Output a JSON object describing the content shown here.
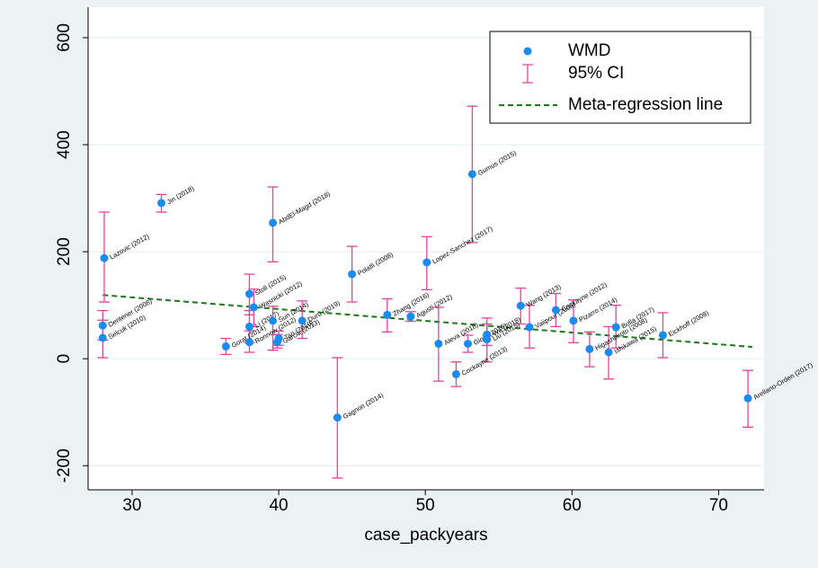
{
  "chart_data": {
    "type": "scatter",
    "x_label": "case_packyears",
    "xlim": [
      27,
      73.1
    ],
    "xticks": [
      30,
      40,
      50,
      60,
      70
    ],
    "ylim": [
      -245,
      657
    ],
    "yticks": [
      -200,
      0,
      200,
      400,
      600
    ],
    "grid": true,
    "legend": "top-right",
    "series": [
      {
        "name": "WMD",
        "color": "#1a8cf0",
        "x": [
          28.1,
          28.0,
          28.0,
          32,
          36.4,
          38,
          38.3,
          38,
          38,
          39.6,
          39.6,
          39.9,
          40,
          41.6,
          44,
          45,
          47.4,
          49,
          50.1,
          50.9,
          53.2,
          52.1,
          52.9,
          54.2,
          54.2,
          56.5,
          57.1,
          58.9,
          60.1,
          61.2,
          62.5,
          63,
          66.2,
          72
        ],
        "values": [
          188,
          62,
          39,
          291,
          23,
          121,
          96,
          60,
          31,
          254,
          71,
          31,
          38,
          71,
          -110,
          158,
          82,
          79,
          180,
          28,
          345,
          -29,
          28,
          36,
          45,
          99,
          59,
          91,
          71,
          18,
          12,
          59,
          44,
          -74
        ],
        "labels": [
          "Lazovic (2012)",
          "Dentener (2008)",
          "Selcuk (2010)",
          "Jin (2018)",
          "Gorat (2014)",
          "Stoll (2015)",
          "Wasnicki (2012)",
          "Li (2017)",
          "Ronnow (2012)",
          "AbdEl-Magd (2018)",
          "Sun (2014)",
          "Garcia (2013)",
          "Tan (2019)",
          "Duru (2019)",
          "Gagnon (2014)",
          "Polatli (2008)",
          "Zhang (2016)",
          "Agusti (2012)",
          "Lopez-Sanchez (2017)",
          "Aleva (2018)",
          "Gumus (2015)",
          "Cockayne (2013)",
          "Gioia (2016)",
          "Liu (2015)",
          "Wu (2018)",
          "Wang (2013)",
          "Vaiipour (2008)",
          "Cockayne (2012)",
          "Pizarro (2014)",
          "Higashimoto (2008)",
          "Ishikawa (2015)",
          "Bolla (2017)",
          "Eickhoff (2008)",
          "Arellano-Orden (2017)"
        ]
      },
      {
        "name": "95% CI",
        "color": "#e8409c",
        "lower": [
          106,
          35,
          2,
          274,
          8,
          82,
          60,
          30,
          12,
          181,
          16,
          20,
          25,
          38,
          -223,
          106,
          50,
          70,
          129,
          -42,
          217,
          -52,
          12,
          -6,
          25,
          65,
          20,
          60,
          30,
          -15,
          -38,
          20,
          2,
          -128
        ],
        "upper": [
          274,
          90,
          72,
          307,
          38,
          158,
          130,
          90,
          52,
          321,
          98,
          45,
          52,
          108,
          2,
          210,
          112,
          88,
          228,
          96,
          472,
          -6,
          44,
          76,
          65,
          132,
          100,
          122,
          110,
          50,
          60,
          100,
          86,
          -22
        ]
      },
      {
        "name": "Meta-regression line",
        "color": "#1a7a1a",
        "x": [
          28,
          72.3
        ],
        "values": [
          119,
          22
        ]
      }
    ]
  }
}
